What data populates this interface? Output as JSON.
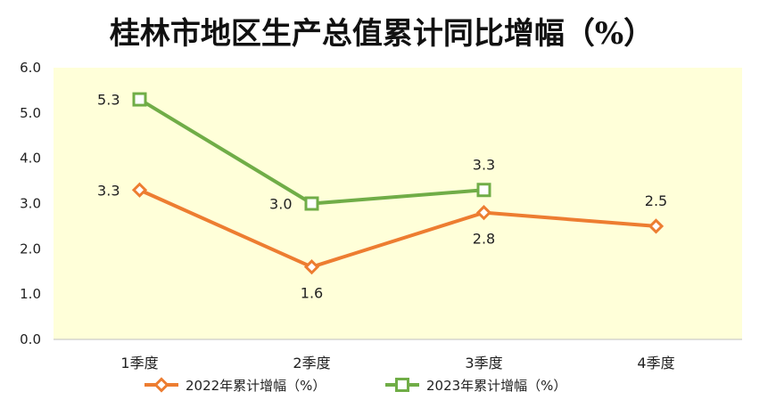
{
  "chart_data": {
    "type": "line",
    "title": "桂林市地区生产总值累计同比增幅（%）",
    "categories": [
      "1季度",
      "2季度",
      "3季度",
      "4季度"
    ],
    "ylim": [
      0,
      6
    ],
    "yticks": [
      "0.0",
      "1.0",
      "2.0",
      "3.0",
      "4.0",
      "5.0",
      "6.0"
    ],
    "grid": false,
    "plot_background": "#FFFFD9",
    "legend_position": "bottom",
    "series": [
      {
        "name": "2022年累计增幅（%）",
        "values": [
          3.3,
          1.6,
          2.8,
          2.5
        ],
        "labels": [
          "3.3",
          "1.6",
          "2.8",
          "2.5"
        ],
        "label_positions": [
          "left",
          "below",
          "below",
          "above"
        ],
        "color": "#ED7D31",
        "marker": "diamond"
      },
      {
        "name": "2023年累计增幅（%）",
        "values": [
          5.3,
          3.0,
          3.3,
          null
        ],
        "labels": [
          "5.3",
          "3.0",
          "3.3",
          ""
        ],
        "label_positions": [
          "left",
          "left",
          "above",
          ""
        ],
        "color": "#70AD47",
        "marker": "square"
      }
    ]
  }
}
